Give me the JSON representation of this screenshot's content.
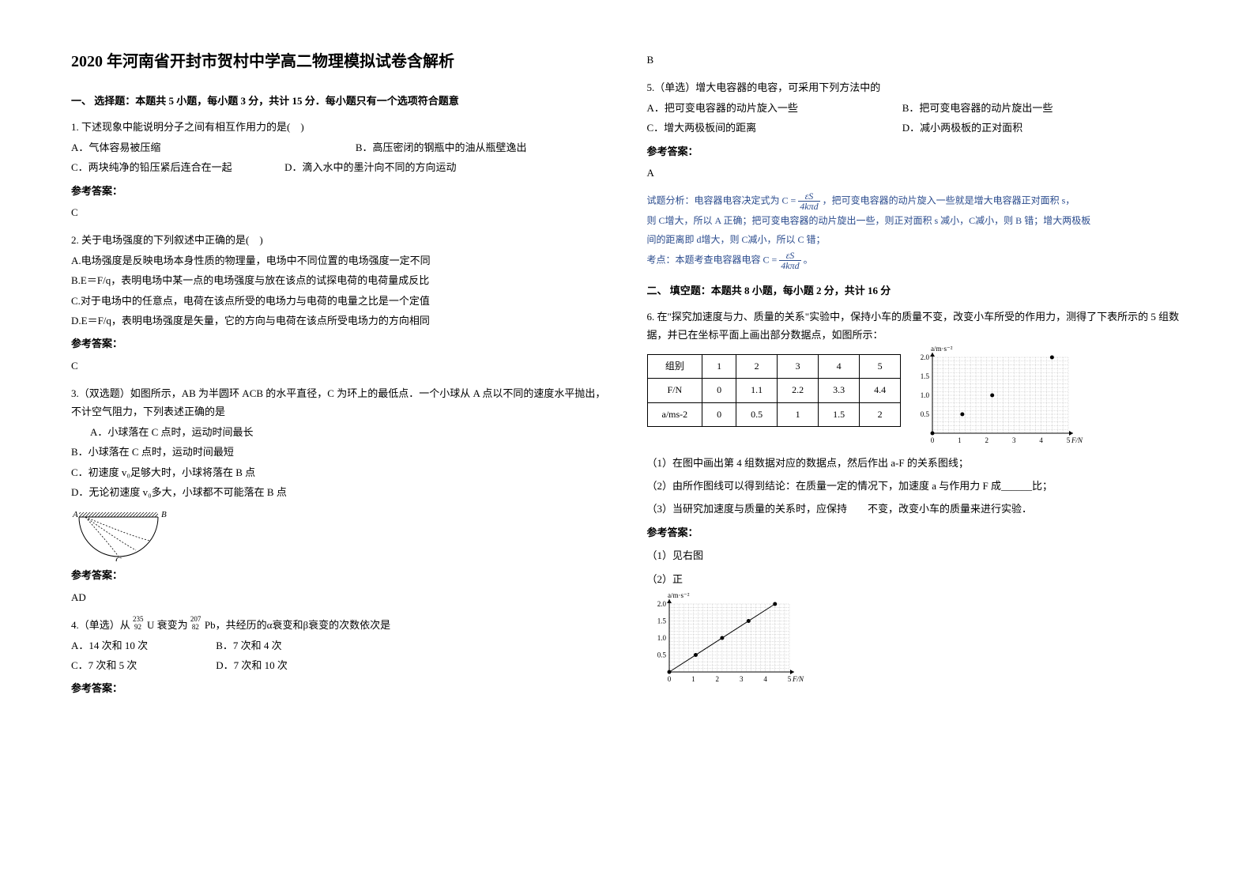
{
  "title": "2020 年河南省开封市贺村中学高二物理模拟试卷含解析",
  "section1": {
    "heading": "一、 选择题：本题共 5 小题，每小题 3 分，共计 15 分．每小题只有一个选项符合题意",
    "q1": {
      "stem": "1. 下述现象中能说明分子之间有相互作用力的是(　)",
      "optA": "A．气体容易被压缩",
      "optB": "B．高压密闭的钢瓶中的油从瓶壁逸出",
      "optC": "C．两块纯净的铅压紧后连合在一起",
      "optD": "D．滴入水中的墨汁向不同的方向运动",
      "answerLabel": "参考答案：",
      "answer": "C"
    },
    "q2": {
      "stem": "2. 关于电场强度的下列叙述中正确的是(　)",
      "optA": "A.电场强度是反映电场本身性质的物理量，电场中不同位置的电场强度一定不同",
      "optB": "B.E＝F/q，表明电场中某一点的电场强度与放在该点的试探电荷的电荷量成反比",
      "optC": "C.对于电场中的任意点，电荷在该点所受的电场力与电荷的电量之比是一个定值",
      "optD": "D.E＝F/q，表明电场强度是矢量，它的方向与电荷在该点所受电场力的方向相同",
      "answerLabel": "参考答案：",
      "answer": "C"
    },
    "q3": {
      "stem": "3.（双选题）如图所示，AB 为半圆环 ACB 的水平直径，C 为环上的最低点．一个小球从 A 点以不同的速度水平抛出，不计空气阻力，下列表述正确的是",
      "optA": "A．小球落在 C 点时，运动时间最长",
      "optB": "B．小球落在 C 点时，运动时间最短",
      "optC": "C．初速度 v₀足够大时，小球将落在 B 点",
      "optD": "D．无论初速度 v₀多大，小球都不可能落在 B 点",
      "labelA": "A",
      "labelB": "B",
      "labelC": "C",
      "answerLabel": "参考答案：",
      "answer": "AD"
    },
    "q4": {
      "stem1": "4.（单选）从 ",
      "stem_sup1": "235",
      "stem_sub1": "92",
      "stem_u": "U",
      "stem_mid": " 衰变为 ",
      "stem_sup2": "207",
      "stem_sub2": "82",
      "stem_pb": "Pb",
      "stem2": "，共经历的α衰变和β衰变的次数依次是",
      "optA": "A．14 次和 10 次",
      "optB": "B．7 次和 4 次",
      "optC": "C．7 次和 5 次",
      "optD": "D．7 次和 10 次",
      "answerLabel": "参考答案：",
      "answer": "B"
    },
    "q5": {
      "stem": "5.（单选）增大电容器的电容，可采用下列方法中的",
      "optA": "A．把可变电容器的动片旋入一些",
      "optB": "B．把可变电容器的动片旋出一些",
      "optC": "C．增大两极板间的距离",
      "optD": "D．减小两极板的正对面积",
      "answerLabel": "参考答案：",
      "answer": "A",
      "analysis1_pre": "试题分析：电容器电容决定式为 C = ",
      "analysis1_post": " ，把可变电容器的动片旋入一些就是增大电容器正对面积 s，",
      "frac_top": "εS",
      "frac_bot": "4kπd",
      "analysis2": "则 C增大，所以 A 正确；把可变电容器的动片旋出一些，则正对面积 s 减小，C减小，则 B 错；增大两极板",
      "analysis3": "间的距离即 d增大，则 C减小，所以 C 错；",
      "analysis4_pre": "考点：本题考查电容器电容 C = ",
      "analysis4_post": " 。"
    }
  },
  "section2": {
    "heading": "二、 填空题：本题共 8 小题，每小题 2 分，共计 16 分",
    "q6": {
      "stem": "6. 在\"探究加速度与力、质量的关系\"实验中，保持小车的质量不变，改变小车所受的作用力，测得了下表所示的 5 组数据，并已在坐标平面上画出部分数据点，如图所示：",
      "table": {
        "header": [
          "组别",
          "1",
          "2",
          "3",
          "4",
          "5"
        ],
        "row1": [
          "F/N",
          "0",
          "1.1",
          "2.2",
          "3.3",
          "4.4"
        ],
        "row2": [
          "a/ms-2",
          "0",
          "0.5",
          "1",
          "1.5",
          "2"
        ]
      },
      "chart": {
        "ylabel": "a/m·s⁻²",
        "xlabel": "F/N",
        "yticks": [
          "0.5",
          "1.0",
          "1.5",
          "2.0"
        ],
        "xticks": [
          "0",
          "1",
          "2",
          "3",
          "4",
          "5"
        ],
        "points": [
          [
            0,
            0
          ],
          [
            1.1,
            0.5
          ],
          [
            2.2,
            1.0
          ],
          [
            4.4,
            2.0
          ]
        ],
        "extra_point": [
          3.3,
          1.5
        ],
        "grid_color": "#888",
        "point_color": "#000"
      },
      "sub1": "（1）在图中画出第 4 组数据对应的数据点，然后作出 a-F 的关系图线；",
      "sub2": "（2）由所作图线可以得到结论：在质量一定的情况下，加速度 a 与作用力 F 成______比；",
      "sub3": "（3）当研究加速度与质量的关系时，应保持　　不变，改变小车的质量来进行实验．",
      "answerLabel": "参考答案：",
      "ans1": "（1）见右图",
      "ans2": "（2）正"
    }
  }
}
